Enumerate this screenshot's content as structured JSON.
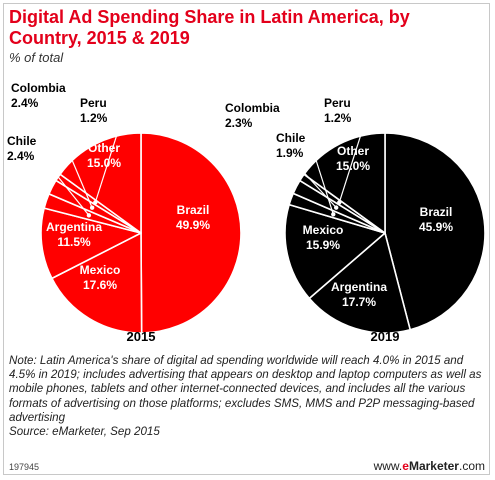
{
  "header": {
    "title": "Digital Ad Spending Share in Latin America, by Country, 2015 & 2019",
    "subtitle": "% of total"
  },
  "chart_data": [
    {
      "type": "pie",
      "title": "2015",
      "color": "#ff0000",
      "slices": [
        {
          "label": "Brazil",
          "value": 49.9,
          "display": "49.9%"
        },
        {
          "label": "Mexico",
          "value": 17.6,
          "display": "17.6%"
        },
        {
          "label": "Argentina",
          "value": 11.5,
          "display": "11.5%"
        },
        {
          "label": "Chile",
          "value": 2.4,
          "display": "2.4%"
        },
        {
          "label": "Colombia",
          "value": 2.4,
          "display": "2.4%"
        },
        {
          "label": "Peru",
          "value": 1.2,
          "display": "1.2%"
        },
        {
          "label": "Other",
          "value": 15.0,
          "display": "15.0%"
        }
      ]
    },
    {
      "type": "pie",
      "title": "2019",
      "color": "#000000",
      "slices": [
        {
          "label": "Brazil",
          "value": 45.9,
          "display": "45.9%"
        },
        {
          "label": "Argentina",
          "value": 17.7,
          "display": "17.7%"
        },
        {
          "label": "Mexico",
          "value": 15.9,
          "display": "15.9%"
        },
        {
          "label": "Chile",
          "value": 1.9,
          "display": "1.9%"
        },
        {
          "label": "Colombia",
          "value": 2.3,
          "display": "2.3%"
        },
        {
          "label": "Peru",
          "value": 1.2,
          "display": "1.2%"
        },
        {
          "label": "Other",
          "value": 15.0,
          "display": "15.0%"
        }
      ]
    }
  ],
  "note": {
    "text": "Note: Latin America's share of digital ad spending worldwide will reach 4.0% in 2015 and 4.5% in 2019; includes advertising that appears on desktop and laptop computers as well as mobile phones, tablets and other internet-connected devices, and includes all the various formats of advertising on those platforms; excludes SMS, MMS and P2P messaging-based advertising",
    "source": "Source: eMarketer, Sep 2015"
  },
  "footer": {
    "chart_id": "197945",
    "brand_prefix": "www.",
    "brand_e": "e",
    "brand_name": "Marketer",
    "brand_suffix": ".com"
  }
}
